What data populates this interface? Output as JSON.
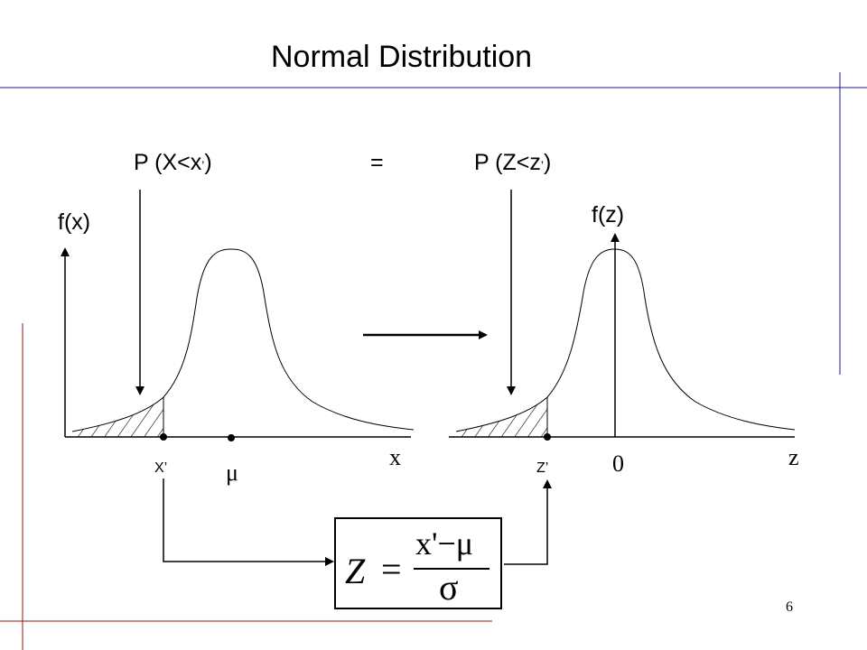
{
  "slide": {
    "title": "Normal Distribution",
    "page_number": "6"
  },
  "equation_top": {
    "left_main": "P (X<x",
    "left_prime": "’",
    "left_close": ")",
    "equals": "=",
    "right_main": "P (Z<z",
    "right_prime": "’",
    "right_close": ")"
  },
  "left_plot": {
    "y_label": "f(x)",
    "x_label": "x",
    "point_label": "X’",
    "mean_label": "μ"
  },
  "right_plot": {
    "y_label": "f(z)",
    "x_label": "z",
    "point_label": "Z’",
    "origin_label": "0"
  },
  "formula": {
    "lhs": "Z",
    "equals": "=",
    "numerator": "x'−μ",
    "denominator": "σ"
  }
}
